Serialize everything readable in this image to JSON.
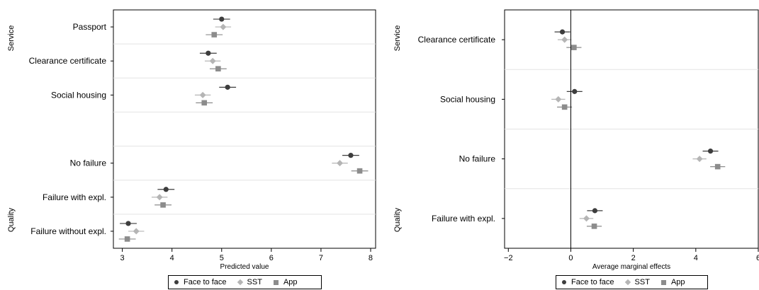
{
  "chart_data": [
    {
      "type": "scatter",
      "xlabel": "Predicted value",
      "xticks": [
        3,
        4,
        5,
        6,
        7,
        8
      ],
      "xlim": [
        2.82,
        8.1
      ],
      "zero_line": false,
      "groups": [
        {
          "label": "Service",
          "rows": [
            {
              "label": "Passport",
              "values": [
                5.0,
                5.03,
                4.85
              ]
            },
            {
              "label": "Clearance certificate",
              "values": [
                4.73,
                4.82,
                4.93
              ]
            },
            {
              "label": "Social housing",
              "values": [
                5.12,
                4.62,
                4.65
              ]
            },
            {
              "label": "",
              "values": null
            }
          ]
        },
        {
          "label": "Quality",
          "rows": [
            {
              "label": "No failure",
              "values": [
                7.6,
                7.38,
                7.78
              ]
            },
            {
              "label": "Failure with expl.",
              "values": [
                3.88,
                3.75,
                3.82
              ]
            },
            {
              "label": "Failure without expl.",
              "values": [
                3.12,
                3.28,
                3.1
              ]
            }
          ]
        }
      ],
      "ci_half_width": [
        0.17,
        0.16,
        0.17
      ],
      "series": [
        {
          "name": "Face to face",
          "color": "#3d3d3d",
          "marker": "circle"
        },
        {
          "name": "SST",
          "color": "#b5b5b5",
          "marker": "diamond"
        },
        {
          "name": "App",
          "color": "#8c8c8c",
          "marker": "square"
        }
      ]
    },
    {
      "type": "scatter",
      "xlabel": "Average marginal effects",
      "xticks": [
        "−2",
        "0",
        "2",
        "4",
        "6"
      ],
      "xtick_values": [
        -2,
        0,
        2,
        4,
        6
      ],
      "xlim": [
        -2.12,
        6.0
      ],
      "zero_line": true,
      "groups": [
        {
          "label": "Service",
          "rows": [
            {
              "label": "Clearance certificate",
              "values": [
                -0.27,
                -0.2,
                0.1
              ]
            },
            {
              "label": "Social housing",
              "values": [
                0.12,
                -0.4,
                -0.2
              ]
            }
          ]
        },
        {
          "label": "Quality",
          "rows": [
            {
              "label": "No failure",
              "values": [
                4.47,
                4.12,
                4.7
              ]
            },
            {
              "label": "Failure with expl.",
              "values": [
                0.77,
                0.5,
                0.75
              ]
            }
          ]
        }
      ],
      "ci_half_width": [
        0.25,
        0.22,
        0.24
      ],
      "series": [
        {
          "name": "Face to face",
          "color": "#3d3d3d",
          "marker": "circle"
        },
        {
          "name": "SST",
          "color": "#b5b5b5",
          "marker": "diamond"
        },
        {
          "name": "App",
          "color": "#8c8c8c",
          "marker": "square"
        }
      ]
    }
  ],
  "legend": {
    "items": [
      {
        "name": "Face to face",
        "color": "#3d3d3d",
        "marker": "dot"
      },
      {
        "name": "SST",
        "color": "#b5b5b5",
        "marker": "dia"
      },
      {
        "name": "App",
        "color": "#8c8c8c",
        "marker": "sq"
      }
    ]
  }
}
